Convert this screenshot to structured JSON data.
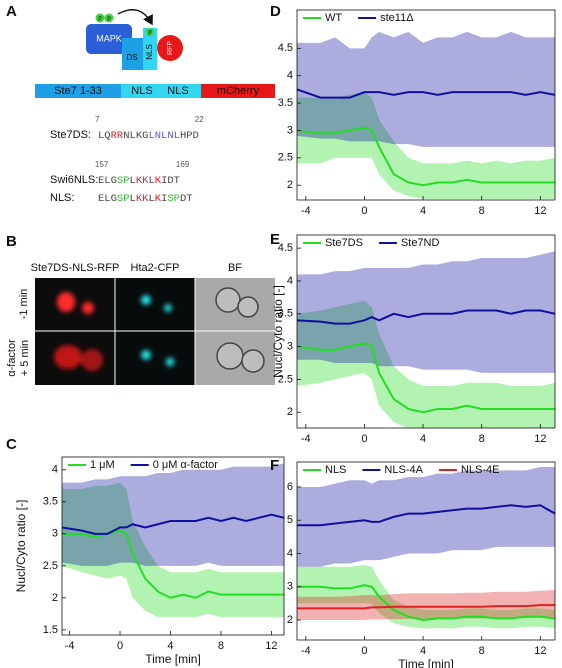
{
  "panel_a": {
    "letter": "A",
    "schematic": {
      "kinase": "MAPK",
      "ds": "DS",
      "nls": "NLS",
      "rfp": "RFP",
      "phospho": [
        "p",
        "p",
        "p"
      ]
    },
    "construct": [
      "Ste7 1-33",
      "NLS",
      "NLS",
      "mCherry"
    ],
    "sequences": [
      {
        "label": "Ste7DS:",
        "start": 7,
        "end": 22,
        "segments": [
          {
            "text": "LQ",
            "color": "#444444"
          },
          {
            "text": "RR",
            "color": "#e02020"
          },
          {
            "text": "NLKG",
            "color": "#444444"
          },
          {
            "text": "LNLNL",
            "color": "#5a5ac8"
          },
          {
            "text": "HPD",
            "color": "#444444"
          }
        ]
      },
      {
        "label": "Swi6NLS:",
        "start": 157,
        "end": 169,
        "segments": [
          {
            "text": "ELG",
            "color": "#444444"
          },
          {
            "text": "SP",
            "color": "#2eb82e"
          },
          {
            "text": "L",
            "color": "#444444"
          },
          {
            "text": "KK",
            "color": "#e02020"
          },
          {
            "text": "L",
            "color": "#444444"
          },
          {
            "text": "K",
            "color": "#e02020"
          },
          {
            "text": "IDT",
            "color": "#444444"
          }
        ]
      },
      {
        "label": "NLS:",
        "segments": [
          {
            "text": "ELG",
            "color": "#444444"
          },
          {
            "text": "SP",
            "color": "#2eb82e"
          },
          {
            "text": "L",
            "color": "#444444"
          },
          {
            "text": "KK",
            "color": "#e02020"
          },
          {
            "text": "L",
            "color": "#444444"
          },
          {
            "text": "K",
            "color": "#e02020"
          },
          {
            "text": "I",
            "color": "#444444"
          },
          {
            "text": "SP",
            "color": "#2eb82e"
          },
          {
            "text": "DT",
            "color": "#444444"
          }
        ]
      }
    ]
  },
  "panel_b": {
    "letter": "B",
    "columns": [
      "Ste7DS-NLS-RFP",
      "Hta2-CFP",
      "BF"
    ],
    "rows": [
      [
        "-1 min"
      ],
      [
        "α-factor",
        "+ 5 min"
      ]
    ]
  },
  "chart_data": [
    {
      "panel": "C",
      "type": "line",
      "x_label": "Time [min]",
      "y_label": "Nucl/Cyto ratio [-]",
      "x": [
        -4.6,
        -3,
        -2,
        -1,
        0,
        0.5,
        1,
        2,
        3,
        4,
        5,
        6,
        7,
        8,
        9,
        10,
        11,
        12,
        13
      ],
      "xlim": [
        -4.6,
        13
      ],
      "ylim": [
        1.42,
        4.2
      ],
      "xticks": [
        -4,
        0,
        4,
        8,
        12
      ],
      "yticks": [
        1.5,
        2,
        2.5,
        3,
        3.5,
        4
      ],
      "series": [
        {
          "name": "1 μM",
          "color": "#22dd22",
          "values": [
            3.0,
            3.0,
            2.95,
            3.0,
            3.05,
            3.0,
            2.7,
            2.3,
            2.1,
            2.0,
            2.05,
            2.0,
            2.1,
            2.05,
            2.05,
            2.05,
            2.05,
            2.05,
            2.05
          ],
          "upper": [
            3.7,
            3.7,
            3.75,
            3.75,
            3.8,
            3.7,
            3.2,
            2.8,
            2.5,
            2.4,
            2.4,
            2.4,
            2.45,
            2.4,
            2.4,
            2.4,
            2.4,
            2.4,
            2.4
          ],
          "lower": [
            2.5,
            2.4,
            2.35,
            2.3,
            2.35,
            2.3,
            2.0,
            1.8,
            1.7,
            1.7,
            1.7,
            1.7,
            1.75,
            1.7,
            1.7,
            1.7,
            1.7,
            1.7,
            1.7
          ]
        },
        {
          "name": "0 μM α-factor",
          "color": "#1010a0",
          "values": [
            3.1,
            3.05,
            3.0,
            3.0,
            3.1,
            3.1,
            3.15,
            3.1,
            3.15,
            3.2,
            3.2,
            3.2,
            3.25,
            3.2,
            3.25,
            3.2,
            3.25,
            3.3,
            3.25
          ],
          "upper": [
            3.8,
            3.8,
            3.85,
            3.85,
            3.9,
            3.9,
            3.9,
            3.9,
            3.95,
            3.95,
            4.0,
            4.0,
            4.0,
            4.0,
            4.05,
            4.05,
            4.05,
            4.05,
            4.1
          ],
          "lower": [
            2.55,
            2.5,
            2.5,
            2.5,
            2.55,
            2.55,
            2.55,
            2.5,
            2.5,
            2.5,
            2.5,
            2.5,
            2.55,
            2.5,
            2.5,
            2.5,
            2.5,
            2.5,
            2.5
          ]
        }
      ]
    },
    {
      "panel": "D",
      "type": "line",
      "x": [
        -4.6,
        -3,
        -2,
        -1,
        0,
        0.5,
        1,
        2,
        3,
        4,
        5,
        6,
        7,
        8,
        9,
        10,
        11,
        12,
        13
      ],
      "xlim": [
        -4.6,
        13
      ],
      "ylim": [
        1.73,
        5.2
      ],
      "xticks": [
        -4,
        0,
        4,
        8,
        12
      ],
      "yticks": [
        2,
        2.5,
        3,
        3.5,
        4,
        4.5
      ],
      "series": [
        {
          "name": "WT",
          "color": "#22dd22",
          "values": [
            3.0,
            2.95,
            2.95,
            3.0,
            3.05,
            3.0,
            2.7,
            2.2,
            2.05,
            2.0,
            2.05,
            2.05,
            2.1,
            2.05,
            2.05,
            2.05,
            2.05,
            2.05,
            2.05
          ],
          "upper": [
            3.6,
            3.6,
            3.6,
            3.65,
            3.7,
            3.6,
            3.2,
            2.8,
            2.5,
            2.4,
            2.4,
            2.4,
            2.45,
            2.4,
            2.45,
            2.4,
            2.45,
            2.45,
            2.5
          ],
          "lower": [
            2.4,
            2.4,
            2.5,
            2.5,
            2.5,
            2.5,
            2.2,
            1.9,
            1.8,
            1.75,
            1.75,
            1.75,
            1.75,
            1.75,
            1.75,
            1.75,
            1.75,
            1.75,
            1.75
          ]
        },
        {
          "name": "ste11Δ",
          "color": "#1010a0",
          "values": [
            3.75,
            3.6,
            3.6,
            3.6,
            3.7,
            3.7,
            3.7,
            3.65,
            3.7,
            3.7,
            3.65,
            3.7,
            3.7,
            3.7,
            3.7,
            3.7,
            3.65,
            3.7,
            3.65
          ],
          "upper": [
            4.6,
            4.6,
            4.7,
            4.5,
            4.5,
            4.7,
            4.8,
            4.7,
            4.8,
            4.6,
            4.7,
            4.7,
            4.8,
            4.7,
            4.7,
            4.8,
            4.7,
            4.7,
            4.7
          ],
          "lower": [
            2.9,
            2.85,
            2.85,
            2.8,
            2.8,
            2.8,
            2.8,
            2.75,
            2.75,
            2.7,
            2.7,
            2.7,
            2.7,
            2.7,
            2.7,
            2.7,
            2.7,
            2.7,
            2.7
          ]
        }
      ]
    },
    {
      "panel": "E",
      "type": "line",
      "y_label": "Nucl/Cyto ratio [-]",
      "x": [
        -4.6,
        -3,
        -2,
        -1,
        0,
        0.5,
        1,
        2,
        3,
        4,
        5,
        6,
        7,
        8,
        9,
        10,
        11,
        12,
        13
      ],
      "xlim": [
        -4.6,
        13
      ],
      "ylim": [
        1.76,
        4.7
      ],
      "xticks": [
        -4,
        0,
        4,
        8,
        12
      ],
      "yticks": [
        2,
        2.5,
        3,
        3.5,
        4,
        4.5
      ],
      "series": [
        {
          "name": "Ste7DS",
          "color": "#22dd22",
          "values": [
            3.0,
            2.95,
            2.95,
            3.0,
            3.05,
            3.0,
            2.6,
            2.2,
            2.05,
            2.0,
            2.05,
            2.05,
            2.1,
            2.05,
            2.05,
            2.05,
            2.05,
            2.05,
            2.05
          ],
          "upper": [
            3.5,
            3.55,
            3.6,
            3.65,
            3.7,
            3.6,
            3.2,
            2.7,
            2.5,
            2.4,
            2.4,
            2.4,
            2.45,
            2.45,
            2.45,
            2.4,
            2.4,
            2.4,
            2.45
          ],
          "lower": [
            2.4,
            2.45,
            2.5,
            2.55,
            2.6,
            2.5,
            2.1,
            1.85,
            1.75,
            1.75,
            1.75,
            1.75,
            1.75,
            1.75,
            1.75,
            1.75,
            1.75,
            1.75,
            1.75
          ]
        },
        {
          "name": "Ste7ND",
          "color": "#1010a0",
          "values": [
            3.4,
            3.38,
            3.35,
            3.35,
            3.4,
            3.45,
            3.4,
            3.5,
            3.45,
            3.5,
            3.5,
            3.5,
            3.55,
            3.55,
            3.55,
            3.5,
            3.55,
            3.55,
            3.5
          ],
          "upper": [
            4.1,
            4.1,
            4.15,
            4.15,
            4.2,
            4.2,
            4.2,
            4.2,
            4.2,
            4.25,
            4.25,
            4.3,
            4.3,
            4.35,
            4.35,
            4.35,
            4.35,
            4.4,
            4.45
          ],
          "lower": [
            2.8,
            2.8,
            2.75,
            2.75,
            2.75,
            2.75,
            2.7,
            2.7,
            2.7,
            2.65,
            2.65,
            2.65,
            2.65,
            2.6,
            2.6,
            2.6,
            2.6,
            2.6,
            2.6
          ]
        }
      ]
    },
    {
      "panel": "F",
      "type": "line",
      "x_label": "Time [min]",
      "x": [
        -4.6,
        -3,
        -2,
        -1,
        0,
        0.5,
        1,
        2,
        3,
        4,
        5,
        6,
        7,
        8,
        9,
        10,
        11,
        12,
        13
      ],
      "xlim": [
        -4.6,
        13
      ],
      "ylim": [
        1.4,
        6.75
      ],
      "xticks": [
        -4,
        0,
        4,
        8,
        12
      ],
      "yticks": [
        2,
        3,
        4,
        5,
        6
      ],
      "series": [
        {
          "name": "NLS",
          "color": "#22dd22",
          "values": [
            3.0,
            3.0,
            2.95,
            2.95,
            3.05,
            3.0,
            2.7,
            2.3,
            2.1,
            2.0,
            2.05,
            2.05,
            2.1,
            2.1,
            2.05,
            2.05,
            2.1,
            2.1,
            2.05
          ],
          "upper": [
            3.6,
            3.6,
            3.6,
            3.6,
            3.65,
            3.6,
            3.2,
            2.6,
            2.4,
            2.3,
            2.3,
            2.3,
            2.35,
            2.35,
            2.3,
            2.3,
            2.35,
            2.35,
            2.3
          ],
          "lower": [
            2.5,
            2.5,
            2.5,
            2.5,
            2.5,
            2.5,
            2.2,
            1.9,
            1.8,
            1.75,
            1.75,
            1.75,
            1.8,
            1.8,
            1.75,
            1.75,
            1.8,
            1.8,
            1.75
          ]
        },
        {
          "name": "NLS-4A",
          "color": "#1010a0",
          "values": [
            4.85,
            4.85,
            4.9,
            4.95,
            5.0,
            4.95,
            4.95,
            5.1,
            5.2,
            5.2,
            5.25,
            5.3,
            5.35,
            5.35,
            5.4,
            5.45,
            5.4,
            5.45,
            5.2
          ],
          "upper": [
            6.0,
            6.0,
            6.1,
            6.2,
            6.2,
            6.1,
            6.2,
            6.2,
            6.3,
            6.3,
            6.4,
            6.4,
            6.5,
            6.5,
            6.5,
            6.5,
            6.5,
            6.6,
            6.6
          ],
          "lower": [
            3.6,
            3.6,
            3.7,
            3.7,
            3.8,
            3.8,
            3.8,
            3.9,
            4.0,
            4.0,
            4.0,
            4.1,
            4.1,
            4.1,
            4.2,
            4.2,
            4.2,
            4.2,
            4.2
          ]
        },
        {
          "name": "NLS-4E",
          "color": "#dd2222",
          "values": [
            2.35,
            2.35,
            2.35,
            2.35,
            2.35,
            2.38,
            2.38,
            2.4,
            2.4,
            2.4,
            2.4,
            2.4,
            2.4,
            2.4,
            2.42,
            2.42,
            2.42,
            2.45,
            2.45
          ],
          "upper": [
            2.7,
            2.7,
            2.7,
            2.72,
            2.75,
            2.75,
            2.75,
            2.78,
            2.8,
            2.8,
            2.8,
            2.8,
            2.82,
            2.82,
            2.85,
            2.85,
            2.85,
            2.88,
            2.9
          ],
          "lower": [
            2.0,
            2.0,
            2.0,
            2.0,
            2.0,
            2.02,
            2.02,
            2.03,
            2.03,
            2.04,
            2.05,
            2.05,
            2.05,
            2.05,
            2.06,
            2.06,
            2.06,
            2.08,
            2.1
          ]
        }
      ]
    }
  ]
}
